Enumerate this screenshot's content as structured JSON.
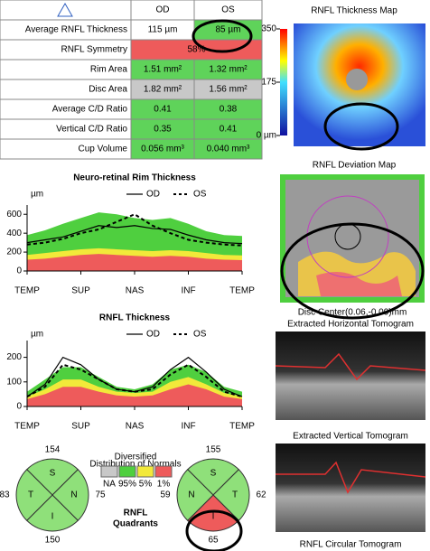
{
  "table": {
    "header": [
      "OD",
      "OS"
    ],
    "rows": [
      {
        "label": "Average RNFL Thickness",
        "values": [
          "115 µm",
          "85 µm"
        ],
        "colors": [
          "#ffffff",
          "#5fd35a"
        ]
      },
      {
        "label": "RNFL Symmetry",
        "values": [
          "58%"
        ],
        "colors": [
          "#ee5b5b"
        ]
      },
      {
        "label": "Rim Area",
        "values": [
          "1.51 mm²",
          "1.32 mm²"
        ],
        "colors": [
          "#5fd35a",
          "#5fd35a"
        ]
      },
      {
        "label": "Disc Area",
        "values": [
          "1.82 mm²",
          "1.56 mm²"
        ],
        "colors": [
          "#c8c8c8",
          "#c8c8c8"
        ]
      },
      {
        "label": "Average C/D Ratio",
        "values": [
          "0.41",
          "0.38"
        ],
        "colors": [
          "#5fd35a",
          "#5fd35a"
        ]
      },
      {
        "label": "Vertical C/D Ratio",
        "values": [
          "0.35",
          "0.41"
        ],
        "colors": [
          "#5fd35a",
          "#5fd35a"
        ]
      },
      {
        "label": "Cup Volume",
        "values": [
          "0.056 mm³",
          "0.040 mm³"
        ],
        "colors": [
          "#5fd35a",
          "#5fd35a"
        ]
      }
    ]
  },
  "thickness_map": {
    "title": "RNFL Thickness Map",
    "scale_ticks": [
      350,
      175,
      {
        "value": 0,
        "label": "0 µm"
      }
    ],
    "scale_lim": [
      0,
      350
    ]
  },
  "deviation_map": {
    "title": "RNFL Deviation Map",
    "disc_center": "Disc Center(0.06,-0.09)mm"
  },
  "rim_chart": {
    "title": "Neuro-retinal Rim Thickness",
    "y_unit": "µm",
    "x": [
      0,
      1,
      2,
      3,
      4,
      5,
      6,
      7,
      8,
      9,
      10,
      11,
      12
    ],
    "xlim": [
      0,
      12
    ],
    "xticks": [
      {
        "value": 0,
        "label": "TEMP"
      },
      {
        "value": 3,
        "label": "SUP"
      },
      {
        "value": 6,
        "label": "NAS"
      },
      {
        "value": 9,
        "label": "INF"
      },
      {
        "value": 12,
        "label": "TEMP"
      }
    ],
    "ylim": [
      0,
      650
    ],
    "yticks": [
      0,
      200,
      400,
      600
    ],
    "bands": [
      {
        "color": "#4fcf3f",
        "values": [
          380,
          430,
          500,
          560,
          620,
          600,
          560,
          540,
          560,
          500,
          420,
          380,
          370
        ]
      },
      {
        "color": "#f2e93a",
        "values": [
          170,
          190,
          210,
          230,
          240,
          230,
          220,
          210,
          220,
          210,
          190,
          170,
          165
        ]
      },
      {
        "color": "#ee5b5b",
        "values": [
          120,
          130,
          150,
          170,
          180,
          170,
          160,
          150,
          160,
          150,
          130,
          120,
          115
        ]
      }
    ],
    "series": [
      {
        "name": "OD",
        "color": "#000000",
        "dashed": false,
        "values": [
          300,
          330,
          360,
          420,
          480,
          460,
          480,
          450,
          440,
          380,
          330,
          300,
          290
        ]
      },
      {
        "name": "OS",
        "color": "#000000",
        "dashed": true,
        "values": [
          280,
          300,
          340,
          400,
          440,
          520,
          600,
          480,
          400,
          330,
          300,
          280,
          270
        ]
      }
    ]
  },
  "rnfl_chart": {
    "title": "RNFL Thickness",
    "y_unit": "µm",
    "x": [
      0,
      1,
      2,
      3,
      4,
      5,
      6,
      7,
      8,
      9,
      10,
      11,
      12
    ],
    "xlim": [
      0,
      12
    ],
    "xticks": [
      {
        "value": 0,
        "label": "TEMP"
      },
      {
        "value": 3,
        "label": "SUP"
      },
      {
        "value": 6,
        "label": "NAS"
      },
      {
        "value": 9,
        "label": "INF"
      },
      {
        "value": 12,
        "label": "TEMP"
      }
    ],
    "ylim": [
      0,
      250
    ],
    "yticks": [
      0,
      100,
      200
    ],
    "bands": [
      {
        "color": "#4fcf3f",
        "values": [
          60,
          110,
          160,
          160,
          120,
          80,
          70,
          90,
          150,
          170,
          140,
          80,
          60
        ]
      },
      {
        "color": "#f2e93a",
        "values": [
          40,
          70,
          110,
          110,
          80,
          60,
          55,
          60,
          100,
          120,
          90,
          55,
          40
        ]
      },
      {
        "color": "#ee5b5b",
        "values": [
          30,
          50,
          80,
          80,
          60,
          45,
          40,
          45,
          70,
          90,
          70,
          40,
          30
        ]
      }
    ],
    "series": [
      {
        "name": "OD",
        "color": "#000000",
        "dashed": false,
        "values": [
          40,
          90,
          200,
          170,
          110,
          70,
          60,
          80,
          150,
          200,
          140,
          70,
          40
        ]
      },
      {
        "name": "OS",
        "color": "#000000",
        "dashed": true,
        "values": [
          40,
          80,
          170,
          150,
          110,
          70,
          60,
          70,
          130,
          170,
          120,
          60,
          40
        ]
      }
    ]
  },
  "normals_legend": {
    "title": [
      "Diversified",
      "Distribution of Normals"
    ],
    "labels": [
      "NA",
      "95%",
      "5%",
      "1%"
    ],
    "colors": [
      "#c8c8c8",
      "#4fcf3f",
      "#f2e93a",
      "#ee5b5b"
    ]
  },
  "quadrants": {
    "title": [
      "RNFL",
      "Quadrants"
    ],
    "od": [
      {
        "label": "S",
        "value": 154,
        "color": "#8fe07a"
      },
      {
        "label": "N",
        "value": 75,
        "color": "#8fe07a"
      },
      {
        "label": "I",
        "value": 150,
        "color": "#8fe07a"
      },
      {
        "label": "T",
        "value": 83,
        "color": "#8fe07a"
      }
    ],
    "os": [
      {
        "label": "S",
        "value": 155,
        "color": "#8fe07a"
      },
      {
        "label": "T",
        "value": 62,
        "color": "#8fe07a"
      },
      {
        "label": "I",
        "value": 65,
        "color": "#ee5b5b"
      },
      {
        "label": "N",
        "value": 59,
        "color": "#8fe07a"
      }
    ]
  },
  "tomograms": {
    "horizontal": "Extracted Horizontal Tomogram",
    "vertical": "Extracted Vertical Tomogram",
    "circular": "RNFL Circular Tomogram"
  }
}
